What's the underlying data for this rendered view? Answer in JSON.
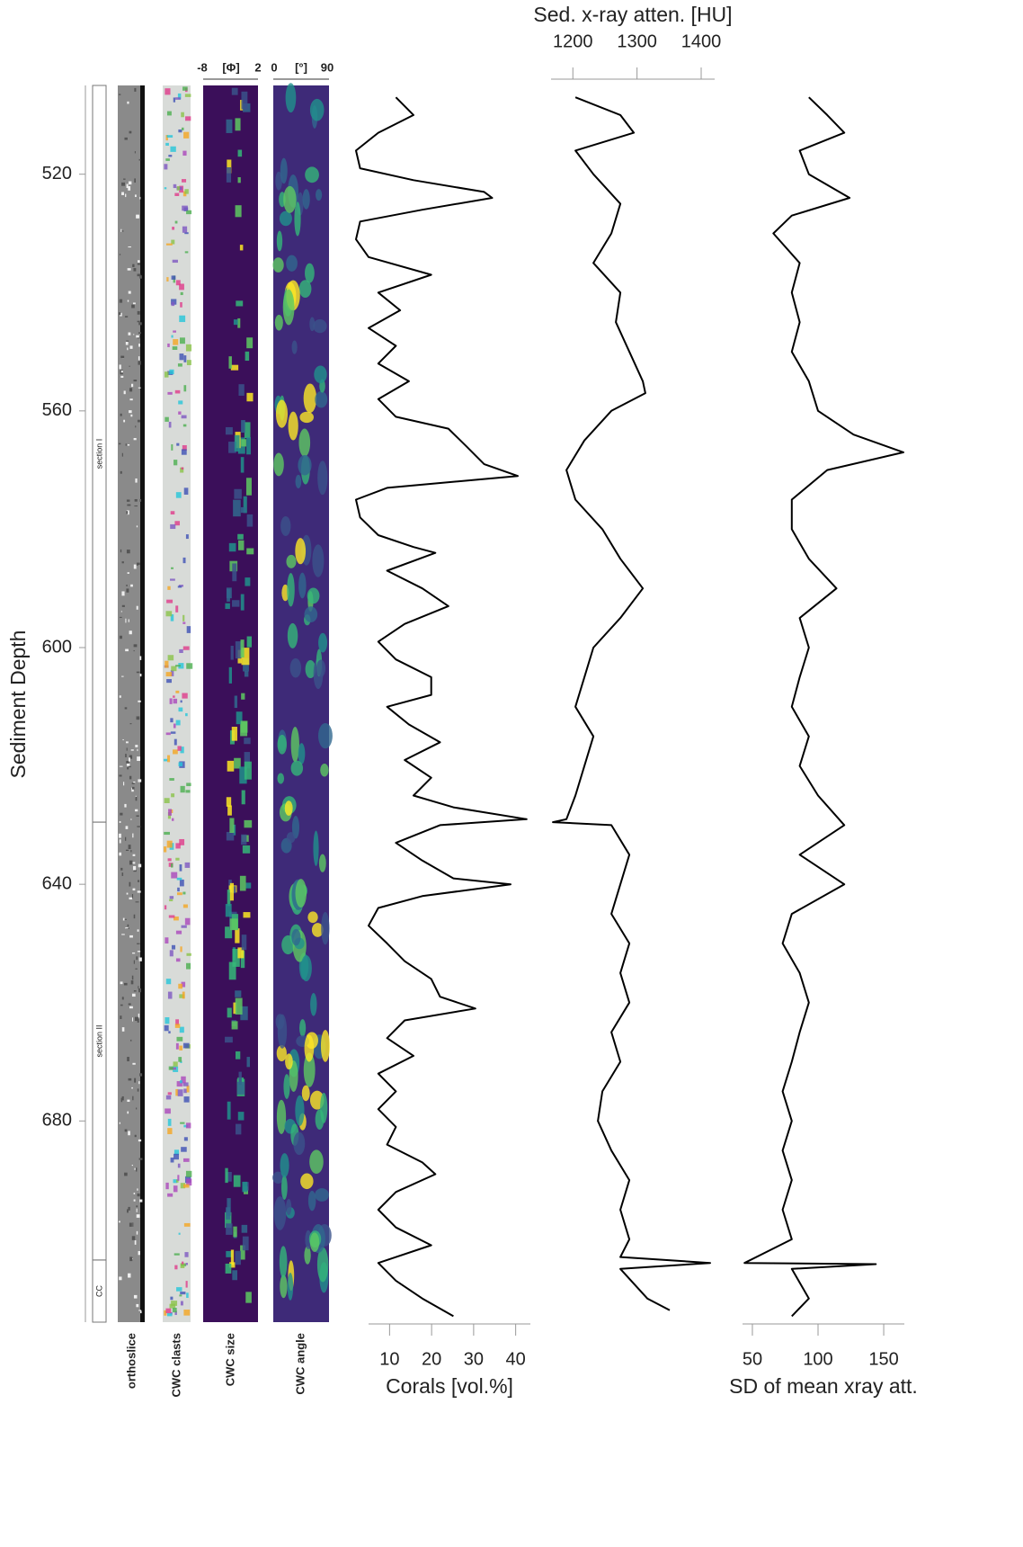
{
  "depth_axis": {
    "label": "Sediment Depth",
    "ylim": [
      505,
      714
    ],
    "yticks": [
      520,
      560,
      600,
      640,
      680
    ]
  },
  "sections": [
    {
      "label": "section I",
      "top": 505,
      "bottom": 629.5
    },
    {
      "label": "section II",
      "top": 629.5,
      "bottom": 703.5
    },
    {
      "label": "CC",
      "top": 703.5,
      "bottom": 714
    }
  ],
  "strip_panels": [
    {
      "label": "orthoslice"
    },
    {
      "label": "CWC clasts"
    },
    {
      "label": "CWC size",
      "scale": [
        "-8",
        "[Φ]",
        "2"
      ]
    },
    {
      "label": "CWC angle",
      "scale": [
        "0",
        "[°]",
        "90"
      ]
    }
  ],
  "chart_data": [
    {
      "type": "line",
      "x_label": "Corals [vol.%]",
      "x_axis": "bottom",
      "color": "#000000",
      "xlim": [
        5,
        43.5
      ],
      "xticks": [
        10,
        20,
        30,
        40
      ],
      "ylim": [
        505,
        714
      ],
      "depth": [
        507,
        510,
        513,
        516,
        519,
        521,
        523,
        524,
        526,
        528,
        531,
        534,
        537,
        540,
        543,
        546,
        549,
        552,
        555,
        558,
        561,
        563,
        566,
        569,
        571,
        573,
        575,
        578,
        581,
        583,
        584,
        587,
        590,
        593,
        596,
        599,
        602,
        605,
        608,
        610,
        613,
        616,
        619,
        622,
        625,
        627,
        629,
        630,
        633,
        636,
        639,
        640,
        642,
        644,
        647,
        650,
        653,
        656,
        659,
        661,
        663,
        666,
        669,
        672,
        675,
        678,
        681,
        684,
        687,
        689,
        692,
        695,
        698,
        701,
        704,
        707,
        710,
        713
      ],
      "values": [
        11.5,
        15.7,
        7.3,
        2,
        3,
        15.7,
        32.5,
        34.4,
        17.8,
        3,
        2,
        5,
        19.9,
        7.3,
        12.5,
        5,
        11.5,
        7.3,
        14.6,
        7.3,
        11.5,
        24,
        28.3,
        32.5,
        40.5,
        9.4,
        2,
        3,
        7.3,
        15.7,
        20.9,
        9.4,
        17.8,
        24,
        13.6,
        7.3,
        11.5,
        19.9,
        19.9,
        9.4,
        14.6,
        22,
        13.6,
        19.9,
        15.7,
        25.2,
        42.6,
        22,
        11.5,
        17.8,
        25.2,
        38.8,
        17.8,
        7.3,
        5,
        9.4,
        13.6,
        19.9,
        22,
        30.4,
        13.6,
        9.4,
        15.7,
        7.3,
        11.5,
        7.3,
        11.5,
        9.4,
        17.8,
        20.9,
        11.5,
        7.3,
        11.5,
        19.9,
        7.3,
        11.5,
        17.8,
        25.2
      ]
    },
    {
      "type": "line",
      "x_label": "Sed. x-ray atten. [HU]",
      "x_axis": "top",
      "color": "#000000",
      "xlim": [
        1166,
        1421
      ],
      "xticks": [
        1200,
        1300,
        1400
      ],
      "ylim": [
        505,
        714
      ],
      "depth": [
        507,
        510,
        513,
        516,
        520,
        525,
        530,
        535,
        540,
        545,
        550,
        555,
        557,
        560,
        565,
        570,
        575,
        580,
        585,
        590,
        595,
        600,
        605,
        610,
        615,
        620,
        625,
        629,
        629.5,
        630,
        635,
        640,
        645,
        650,
        655,
        660,
        665,
        670,
        675,
        680,
        685,
        690,
        695,
        700,
        703,
        704,
        705,
        710,
        712
      ],
      "values": [
        1204,
        1274,
        1295,
        1204,
        1232,
        1274,
        1260,
        1232,
        1274,
        1267,
        1288,
        1309,
        1313,
        1260,
        1218,
        1190,
        1204,
        1246,
        1274,
        1309,
        1274,
        1232,
        1218,
        1204,
        1232,
        1218,
        1204,
        1190,
        1169,
        1260,
        1288,
        1274,
        1260,
        1288,
        1274,
        1288,
        1260,
        1274,
        1246,
        1239,
        1260,
        1288,
        1274,
        1288,
        1274,
        1414,
        1274,
        1316,
        1351
      ]
    },
    {
      "type": "line",
      "x_label": "SD of mean xray att.",
      "x_axis": "bottom",
      "color": "#000000",
      "xlim": [
        42.5,
        165.7
      ],
      "xticks": [
        50,
        100,
        150
      ],
      "ylim": [
        505,
        714
      ],
      "depth": [
        507,
        510,
        513,
        516,
        520,
        524,
        527,
        530,
        535,
        540,
        545,
        550,
        555,
        560,
        564,
        567,
        570,
        575,
        580,
        585,
        590,
        595,
        600,
        605,
        610,
        615,
        620,
        625,
        630,
        635,
        640,
        645,
        650,
        655,
        660,
        665,
        670,
        675,
        680,
        685,
        690,
        695,
        700,
        704,
        704.2,
        705,
        710,
        713
      ],
      "values": [
        93,
        107,
        120,
        86,
        93,
        124,
        80,
        66,
        86,
        80,
        86,
        80,
        93,
        100,
        127,
        165,
        107,
        80,
        80,
        93,
        114,
        86,
        93,
        86,
        80,
        93,
        86,
        100,
        120,
        86,
        120,
        80,
        73,
        86,
        93,
        86,
        80,
        73,
        80,
        73,
        80,
        73,
        80,
        44,
        144,
        80,
        93,
        80
      ]
    }
  ]
}
